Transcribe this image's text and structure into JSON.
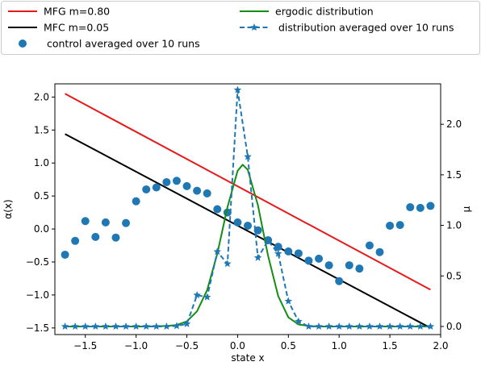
{
  "chart_data": {
    "type": "line",
    "xlabel": "state x",
    "ylabel_left": "α(x)",
    "ylabel_right": "μ",
    "xlim": [
      -1.8,
      2.0
    ],
    "ylim_left": [
      -1.6,
      2.2
    ],
    "ylim_right": [
      -0.08,
      2.4
    ],
    "xticks": [
      -1.5,
      -1.0,
      -0.5,
      0.0,
      0.5,
      1.0,
      1.5,
      2.0
    ],
    "xtick_labels": [
      "−1.5",
      "−1.0",
      "−0.5",
      "0.0",
      "0.5",
      "1.0",
      "1.5",
      "2.0"
    ],
    "yticks_left": [
      -1.5,
      -1.0,
      -0.5,
      0.0,
      0.5,
      1.0,
      1.5,
      2.0
    ],
    "ytick_labels_left": [
      "−1.5",
      "−1.0",
      "−0.5",
      "0.0",
      "0.5",
      "1.0",
      "1.5",
      "2.0"
    ],
    "yticks_right": [
      0.0,
      0.5,
      1.0,
      1.5,
      2.0
    ],
    "ytick_labels_right": [
      "0.0",
      "0.5",
      "1.0",
      "1.5",
      "2.0"
    ],
    "grid": false,
    "legend_placement": "top, outside above plot, two columns",
    "legend": [
      {
        "label": "MFG m=0.80",
        "marker": "line",
        "color": "#e41a1c"
      },
      {
        "label": "ergodic distribution",
        "marker": "line",
        "color": "#138d13"
      },
      {
        "label": "MFC m=0.05",
        "marker": "line",
        "color": "#000000"
      },
      {
        "label": " distribution averaged over 10 runs",
        "marker": "dashed-star",
        "color": "#1f77b4"
      },
      {
        "label": " control averaged over 10 runs",
        "marker": "circle",
        "color": "#1f77b4"
      }
    ],
    "series": [
      {
        "name": "MFG m=0.80",
        "axis": "left",
        "style": "solid",
        "color": "#e41a1c",
        "x": [
          -1.7,
          1.9
        ],
        "y": [
          2.05,
          -0.92
        ]
      },
      {
        "name": "MFC m=0.05",
        "axis": "left",
        "style": "solid",
        "color": "#000000",
        "x": [
          -1.7,
          1.9
        ],
        "y": [
          1.44,
          -1.5
        ]
      },
      {
        "name": "control averaged over 10 runs",
        "axis": "left",
        "style": "scatter",
        "color": "#1f77b4",
        "x": [
          -1.7,
          -1.6,
          -1.5,
          -1.4,
          -1.3,
          -1.2,
          -1.1,
          -1.0,
          -0.9,
          -0.8,
          -0.7,
          -0.6,
          -0.5,
          -0.4,
          -0.3,
          -0.2,
          -0.1,
          0.0,
          0.1,
          0.2,
          0.3,
          0.4,
          0.5,
          0.6,
          0.7,
          0.8,
          0.9,
          1.0,
          1.1,
          1.2,
          1.3,
          1.4,
          1.5,
          1.6,
          1.7,
          1.8,
          1.9
        ],
        "y": [
          -0.39,
          -0.18,
          0.12,
          -0.12,
          0.1,
          -0.13,
          0.09,
          0.42,
          0.6,
          0.63,
          0.71,
          0.73,
          0.65,
          0.58,
          0.54,
          0.3,
          0.25,
          0.1,
          0.05,
          -0.02,
          -0.17,
          -0.27,
          -0.34,
          -0.37,
          -0.48,
          -0.45,
          -0.55,
          -0.79,
          -0.55,
          -0.6,
          -0.25,
          -0.35,
          0.05,
          0.06,
          0.33,
          0.32,
          0.35
        ]
      },
      {
        "name": "ergodic distribution",
        "axis": "right",
        "style": "solid",
        "color": "#138d13",
        "x": [
          -1.7,
          -0.9,
          -0.7,
          -0.6,
          -0.5,
          -0.4,
          -0.3,
          -0.2,
          -0.1,
          0.0,
          0.05,
          0.1,
          0.2,
          0.3,
          0.4,
          0.5,
          0.6,
          0.7,
          0.8,
          1.0,
          1.9
        ],
        "y": [
          0.0,
          0.0,
          0.005,
          0.015,
          0.05,
          0.15,
          0.36,
          0.72,
          1.18,
          1.54,
          1.6,
          1.55,
          1.2,
          0.7,
          0.3,
          0.09,
          0.02,
          0.005,
          0.0,
          0.0,
          0.0
        ]
      },
      {
        "name": " distribution averaged over 10 runs",
        "axis": "right",
        "style": "dashed-star",
        "color": "#1f77b4",
        "x": [
          -1.7,
          -1.6,
          -1.5,
          -1.4,
          -1.3,
          -1.2,
          -1.1,
          -1.0,
          -0.9,
          -0.8,
          -0.7,
          -0.6,
          -0.5,
          -0.4,
          -0.3,
          -0.2,
          -0.1,
          0.0,
          0.1,
          0.2,
          0.3,
          0.4,
          0.5,
          0.6,
          0.7,
          0.8,
          0.9,
          1.0,
          1.1,
          1.2,
          1.3,
          1.4,
          1.5,
          1.6,
          1.7,
          1.8,
          1.9
        ],
        "y": [
          0.0,
          0.0,
          0.0,
          0.0,
          0.0,
          0.0,
          0.0,
          0.0,
          0.0,
          0.0,
          0.0,
          0.005,
          0.025,
          0.31,
          0.29,
          0.74,
          0.62,
          2.34,
          1.68,
          0.68,
          0.85,
          0.72,
          0.25,
          0.05,
          0.0,
          0.0,
          0.0,
          0.0,
          0.0,
          0.0,
          0.0,
          0.0,
          0.0,
          0.0,
          0.0,
          0.0,
          0.0
        ]
      }
    ]
  }
}
